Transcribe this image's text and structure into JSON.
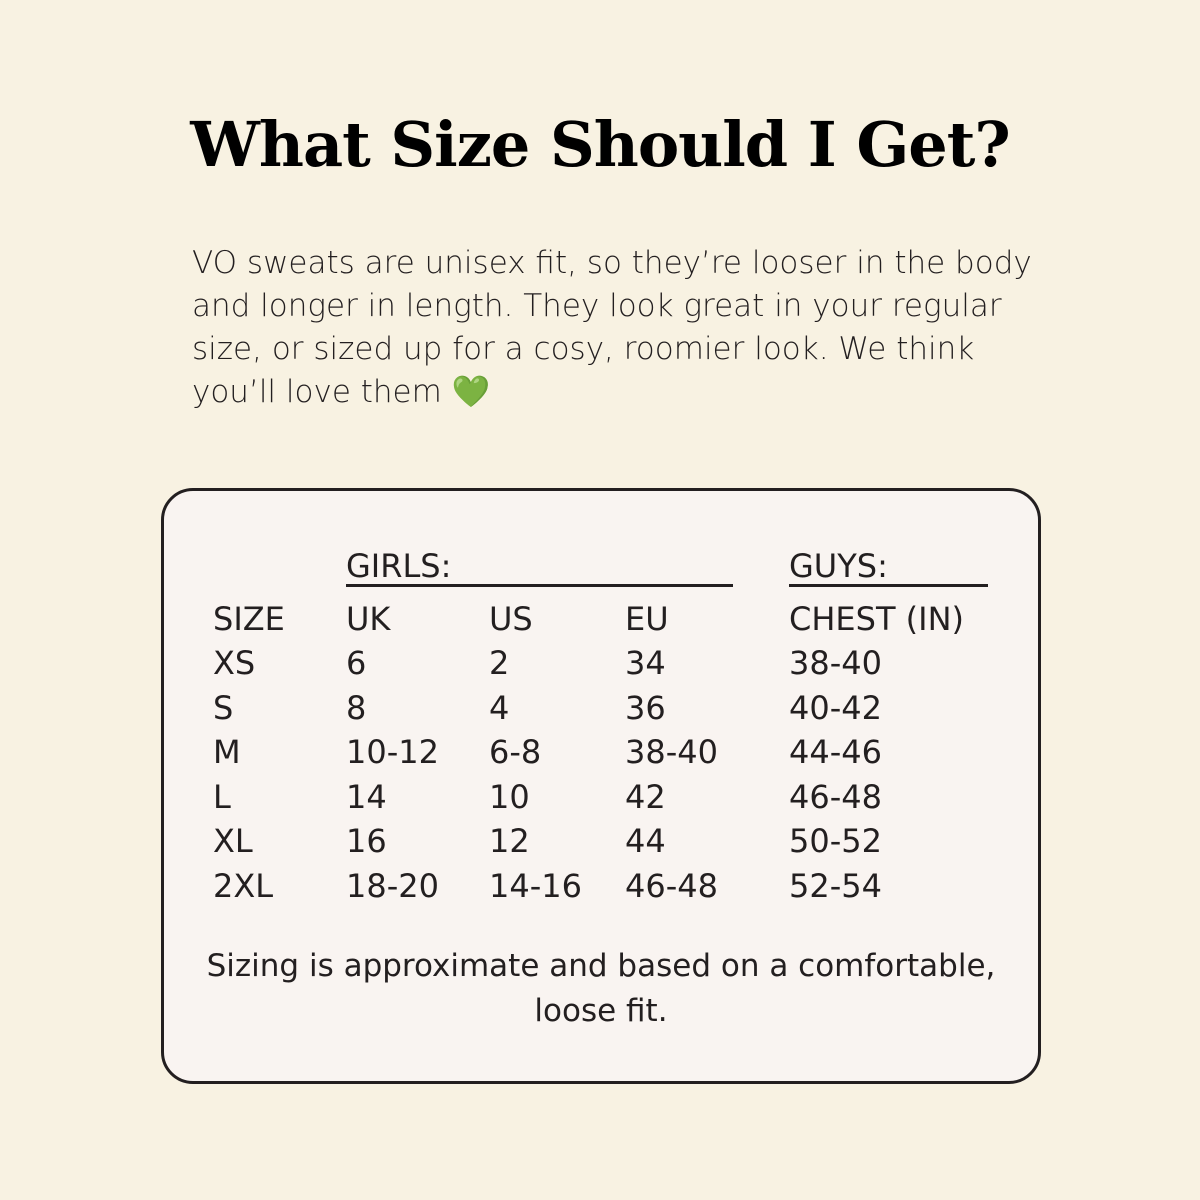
{
  "title": "What Size Should I Get?",
  "intro": "VO sweats are unisex fit, so they’re looser in the body and longer in length. They look great in your regular size, or sized up for a cosy, roomier look. We think you’ll love them",
  "intro_emoji": "💚",
  "table": {
    "group_girls": "GIRLS:",
    "group_guys": "GUYS:",
    "headers": [
      "SIZE",
      "UK",
      "US",
      "EU",
      "CHEST (IN)"
    ],
    "rows": [
      [
        "XS",
        "6",
        "2",
        "34",
        "38-40"
      ],
      [
        "S",
        "8",
        "4",
        "36",
        "40-42"
      ],
      [
        "M",
        "10-12",
        "6-8",
        "38-40",
        "44-46"
      ],
      [
        "L",
        "14",
        "10",
        "42",
        "46-48"
      ],
      [
        "XL",
        "16",
        "12",
        "44",
        "50-52"
      ],
      [
        "2XL",
        "18-20",
        "14-16",
        "46-48",
        "52-54"
      ]
    ]
  },
  "note": "Sizing is approximate and based on a comfortable, loose fit."
}
